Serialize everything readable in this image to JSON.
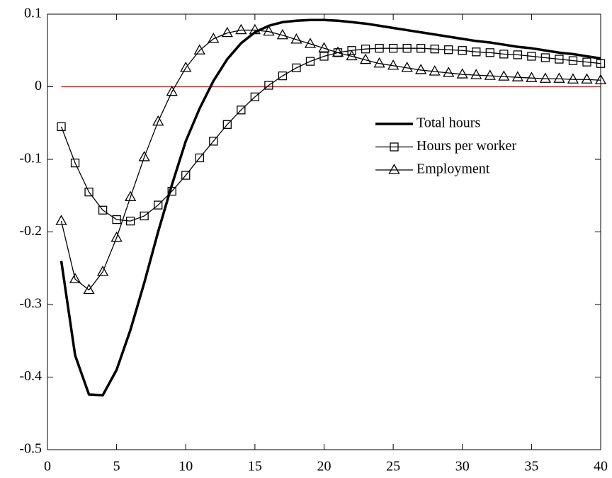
{
  "chart_data": {
    "type": "line",
    "x": [
      1,
      2,
      3,
      4,
      5,
      6,
      7,
      8,
      9,
      10,
      11,
      12,
      13,
      14,
      15,
      16,
      17,
      18,
      19,
      20,
      21,
      22,
      23,
      24,
      25,
      26,
      27,
      28,
      29,
      30,
      31,
      32,
      33,
      34,
      35,
      36,
      37,
      38,
      39,
      40
    ],
    "series": [
      {
        "name": "Total hours",
        "color": "#000000",
        "line_width": 3.5,
        "marker": null,
        "values": [
          -0.24,
          -0.37,
          -0.424,
          -0.425,
          -0.39,
          -0.335,
          -0.27,
          -0.2,
          -0.135,
          -0.075,
          -0.03,
          0.008,
          0.038,
          0.06,
          0.075,
          0.084,
          0.089,
          0.091,
          0.092,
          0.092,
          0.091,
          0.089,
          0.087,
          0.084,
          0.081,
          0.078,
          0.075,
          0.072,
          0.069,
          0.066,
          0.063,
          0.061,
          0.058,
          0.055,
          0.053,
          0.05,
          0.047,
          0.045,
          0.042,
          0.039
        ]
      },
      {
        "name": "Hours per worker",
        "color": "#000000",
        "line_width": 1.3,
        "marker": "square",
        "values": [
          -0.055,
          -0.105,
          -0.145,
          -0.17,
          -0.183,
          -0.185,
          -0.178,
          -0.163,
          -0.144,
          -0.122,
          -0.098,
          -0.075,
          -0.052,
          -0.032,
          -0.014,
          0.002,
          0.015,
          0.026,
          0.035,
          0.042,
          0.047,
          0.05,
          0.052,
          0.053,
          0.053,
          0.053,
          0.053,
          0.052,
          0.051,
          0.05,
          0.048,
          0.047,
          0.045,
          0.044,
          0.042,
          0.04,
          0.038,
          0.036,
          0.034,
          0.032
        ]
      },
      {
        "name": "Employment",
        "color": "#000000",
        "line_width": 1.3,
        "marker": "triangle",
        "values": [
          -0.185,
          -0.265,
          -0.28,
          -0.255,
          -0.208,
          -0.152,
          -0.097,
          -0.048,
          -0.007,
          0.026,
          0.05,
          0.066,
          0.074,
          0.078,
          0.078,
          0.076,
          0.071,
          0.065,
          0.059,
          0.053,
          0.047,
          0.042,
          0.037,
          0.032,
          0.029,
          0.026,
          0.023,
          0.021,
          0.019,
          0.017,
          0.016,
          0.015,
          0.014,
          0.013,
          0.012,
          0.011,
          0.011,
          0.01,
          0.01,
          0.009
        ]
      }
    ],
    "reference_line": {
      "y": 0,
      "color": "#ff0000"
    },
    "xlim": [
      0,
      40
    ],
    "xticks": [
      0,
      5,
      10,
      15,
      20,
      25,
      30,
      35,
      40
    ],
    "ylim": [
      -0.5,
      0.1
    ],
    "yticks": [
      -0.5,
      -0.4,
      -0.3,
      -0.2,
      -0.1,
      0,
      0.1
    ],
    "grid": false,
    "legend": "east"
  }
}
